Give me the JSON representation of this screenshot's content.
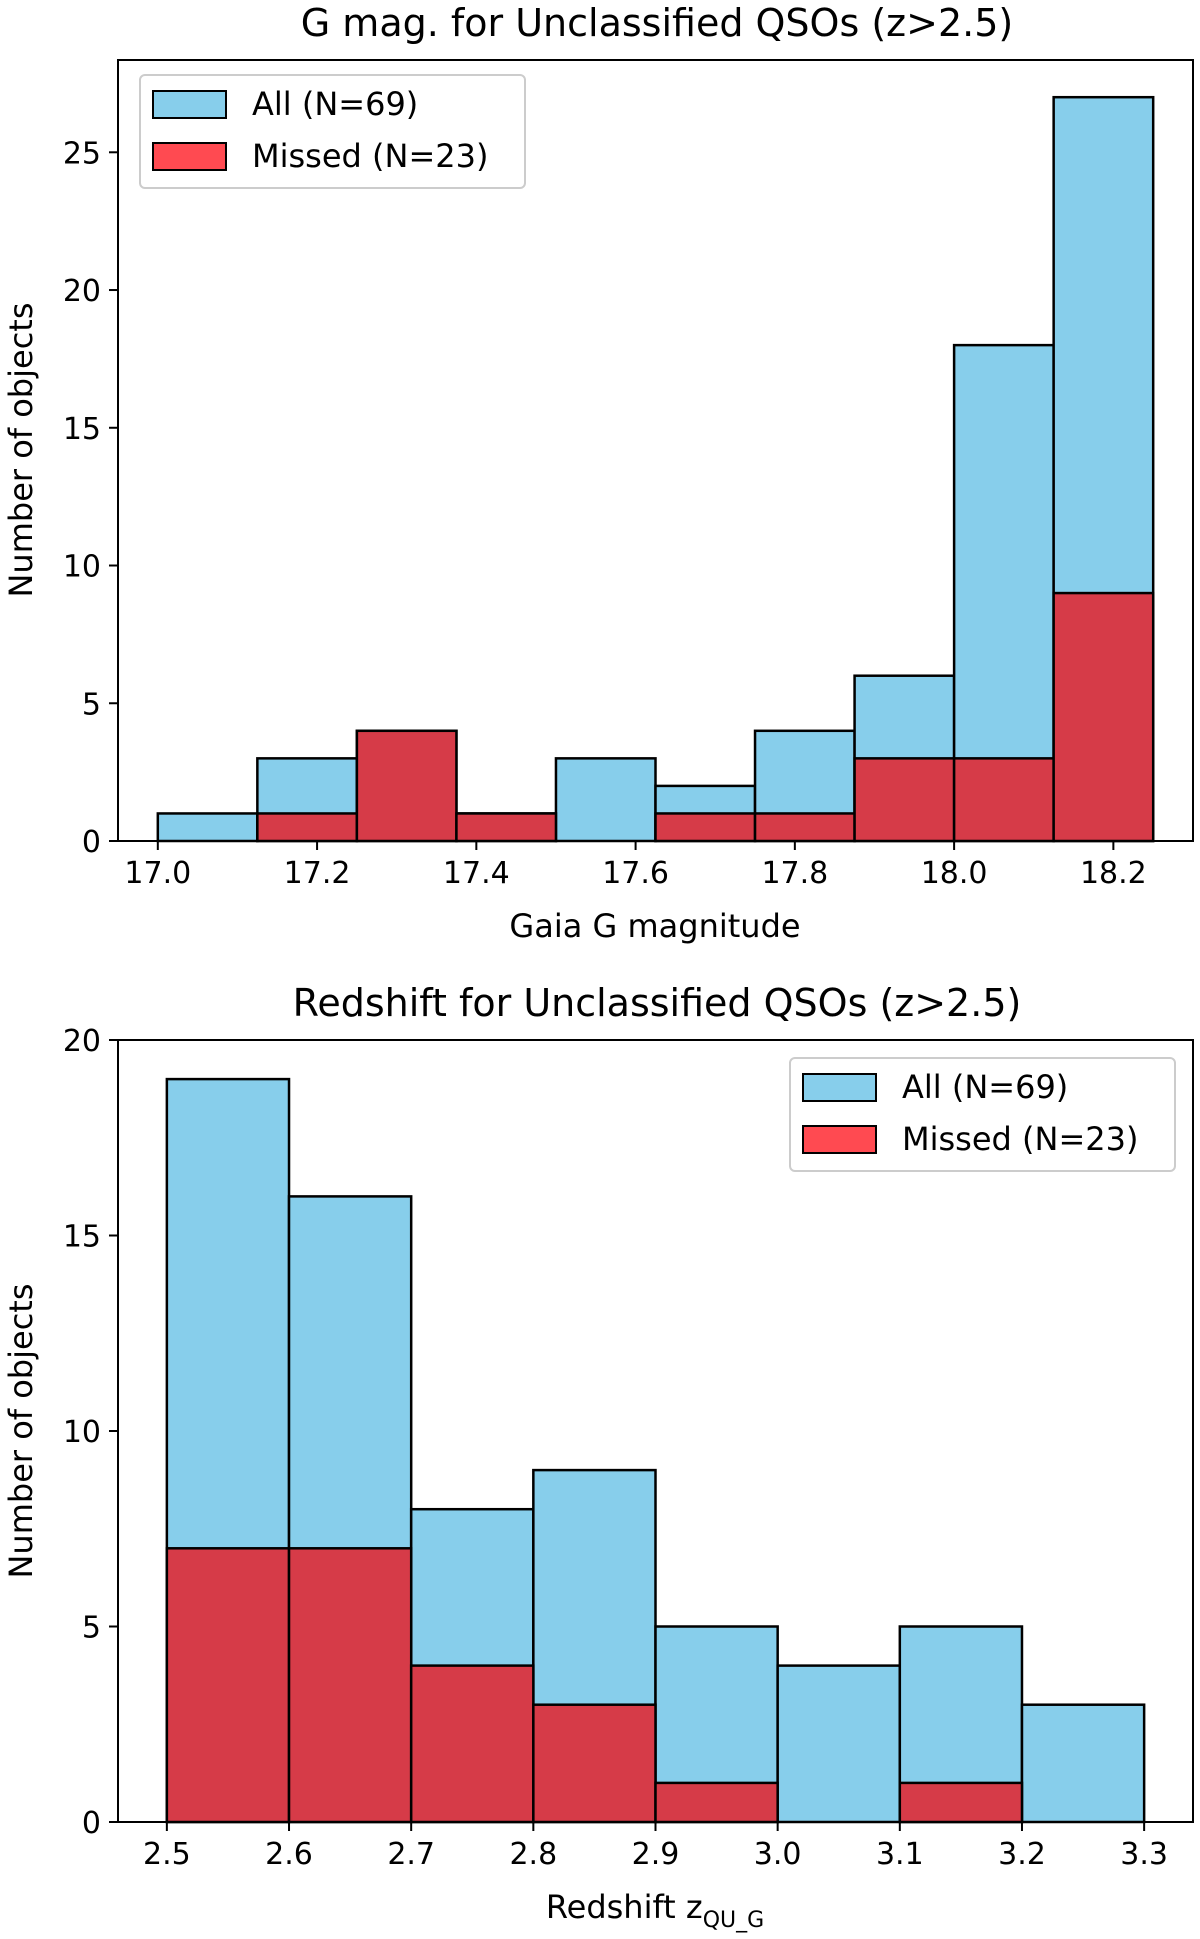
{
  "chart_data": [
    {
      "type": "bar",
      "histogram": true,
      "title": "G mag. for Unclassified QSOs (z>2.5)",
      "xlabel": "Gaia G magnitude",
      "ylabel": "Number of objects",
      "xlim": [
        16.95,
        18.3
      ],
      "ylim": [
        0,
        28.35
      ],
      "xticks": [
        17.0,
        17.2,
        17.4,
        17.6,
        17.8,
        18.0,
        18.2
      ],
      "xtick_labels": [
        "17.0",
        "17.2",
        "17.4",
        "17.6",
        "17.8",
        "18.0",
        "18.2"
      ],
      "yticks": [
        0,
        5,
        10,
        15,
        20,
        25
      ],
      "ytick_labels": [
        "0",
        "5",
        "10",
        "15",
        "20",
        "25"
      ],
      "bin_edges": [
        17.0,
        17.125,
        17.25,
        17.375,
        17.5,
        17.625,
        17.75,
        17.875,
        18.0,
        18.125,
        18.25
      ],
      "series": [
        {
          "name": "All (N=69)",
          "color": "#87ceeb",
          "values": [
            1,
            3,
            4,
            1,
            3,
            2,
            4,
            6,
            18,
            27
          ]
        },
        {
          "name": "Missed (N=23)",
          "color": "#d63b48",
          "values": [
            0,
            1,
            4,
            1,
            0,
            1,
            1,
            3,
            3,
            9
          ]
        }
      ],
      "legend_position": "top-left",
      "grid": false
    },
    {
      "type": "bar",
      "histogram": true,
      "title": "Redshift for Unclassified QSOs (z>2.5)",
      "xlabel": "Redshift z",
      "xlabel_subscript": "QU_G",
      "ylabel": "Number of objects",
      "xlim": [
        2.46,
        3.34
      ],
      "ylim": [
        0,
        20
      ],
      "xticks": [
        2.5,
        2.6,
        2.7,
        2.8,
        2.9,
        3.0,
        3.1,
        3.2,
        3.3
      ],
      "xtick_labels": [
        "2.5",
        "2.6",
        "2.7",
        "2.8",
        "2.9",
        "3.0",
        "3.1",
        "3.2",
        "3.3"
      ],
      "yticks": [
        0,
        5,
        10,
        15,
        20
      ],
      "ytick_labels": [
        "0",
        "5",
        "10",
        "15",
        "20"
      ],
      "bin_edges": [
        2.5,
        2.6,
        2.7,
        2.8,
        2.9,
        3.0,
        3.1,
        3.2,
        3.3
      ],
      "series": [
        {
          "name": "All (N=69)",
          "color": "#87ceeb",
          "values": [
            19,
            16,
            8,
            9,
            5,
            4,
            5,
            3
          ]
        },
        {
          "name": "Missed (N=23)",
          "color": "#d63b48",
          "values": [
            7,
            7,
            4,
            3,
            1,
            0,
            1,
            0
          ]
        }
      ],
      "legend_position": "top-right",
      "grid": false
    }
  ]
}
